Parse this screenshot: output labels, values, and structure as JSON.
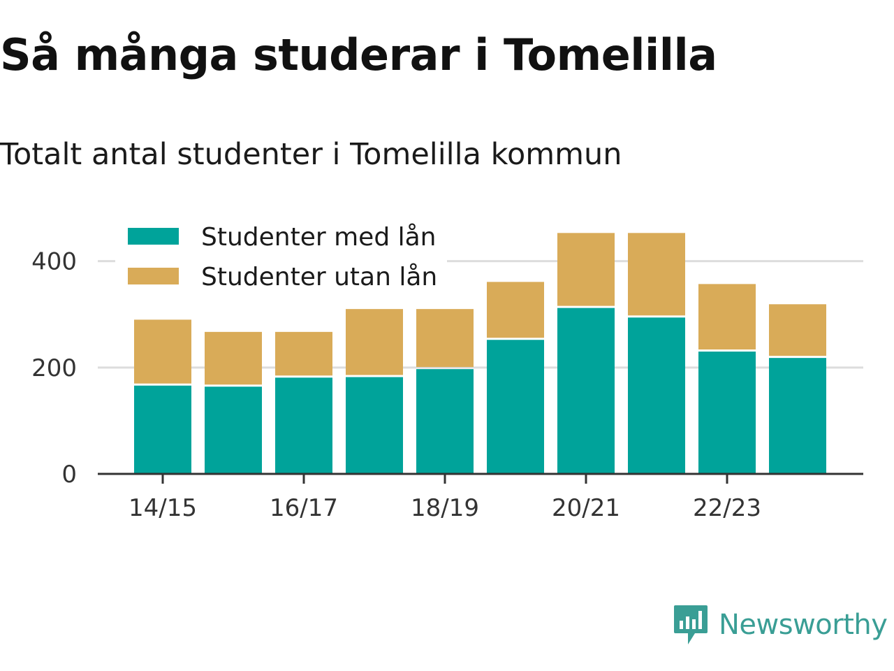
{
  "title": "Så många studerar i Tomelilla",
  "subtitle": "Totalt antal studenter i Tomelilla kommun",
  "brand": {
    "name": "Newsworthy",
    "icon": "newsworthy-logo-icon",
    "color": "#3a9e95"
  },
  "colors": {
    "med_lan": "#00a39a",
    "utan_lan": "#d9ab58",
    "axis": "#333333",
    "grid": "#dddddd"
  },
  "chart_data": {
    "type": "bar",
    "stacked": true,
    "categories": [
      "14/15",
      "15/16",
      "16/17",
      "17/18",
      "18/19",
      "19/20",
      "20/21",
      "21/22",
      "22/23",
      "23/24"
    ],
    "x_tick_labels": [
      "14/15",
      "16/17",
      "18/19",
      "20/21",
      "22/23"
    ],
    "series": [
      {
        "name": "Studenter med lån",
        "color": "#00a39a",
        "values": [
          166,
          164,
          181,
          182,
          197,
          252,
          312,
          294,
          230,
          218
        ]
      },
      {
        "name": "Studenter utan lån",
        "color": "#d9ab58",
        "values": [
          124,
          103,
          86,
          128,
          113,
          109,
          141,
          159,
          127,
          101
        ]
      }
    ],
    "ylim": [
      0,
      460
    ],
    "y_ticks": [
      0,
      200,
      400
    ],
    "grid": true,
    "legend_position": "top-left",
    "xlabel": "",
    "ylabel": ""
  }
}
